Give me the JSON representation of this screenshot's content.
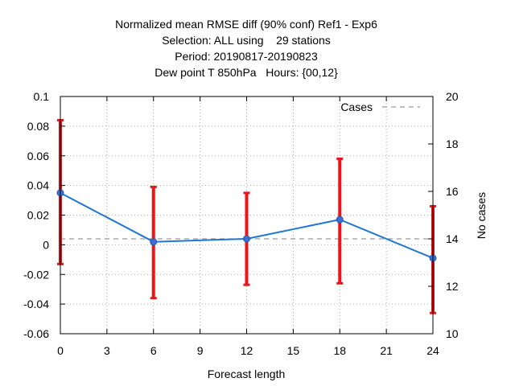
{
  "chart_data": {
    "type": "line",
    "title_lines": [
      "Normalized mean RMSE diff (90% conf) Ref1 - Exp6",
      "Selection: ALL using    29 stations",
      "Period: 20190817-20190823",
      "Dew point T 850hPa   Hours: {00,12}"
    ],
    "xlabel": "Forecast length",
    "ylabel": "",
    "y2label": "No cases",
    "xlim": [
      0,
      24
    ],
    "ylim": [
      -0.06,
      0.1
    ],
    "y2lim": [
      10,
      20
    ],
    "x_ticks": [
      0,
      3,
      6,
      9,
      12,
      15,
      18,
      21,
      24
    ],
    "y_ticks": [
      -0.06,
      -0.04,
      -0.02,
      0,
      0.02,
      0.04,
      0.06,
      0.08,
      0.1
    ],
    "y_tick_labels": [
      "-0.06",
      "-0.04",
      "-0.02",
      "0",
      "0.02",
      "0.04",
      "0.06",
      "0.08",
      "0.1"
    ],
    "y2_ticks": [
      10,
      12,
      14,
      16,
      18,
      20
    ],
    "grid": true,
    "legend_position": "top-right",
    "series": [
      {
        "x": [
          0,
          6,
          12,
          18,
          24
        ],
        "values": [
          0.035,
          0.002,
          0.004,
          0.017,
          -0.009
        ],
        "color": "#1f77d4"
      }
    ],
    "error_bars": {
      "x": [
        0,
        6,
        12,
        18,
        24
      ],
      "low": [
        -0.013,
        -0.036,
        -0.027,
        -0.026,
        -0.046
      ],
      "high": [
        0.084,
        0.039,
        0.035,
        0.058,
        0.026
      ],
      "color": "#e8161b"
    },
    "cases": {
      "name": "Cases",
      "x": [
        0,
        6,
        12,
        18,
        24
      ],
      "values": [
        14,
        14,
        14,
        14,
        14
      ],
      "color": "#999999",
      "axis": "right"
    }
  }
}
